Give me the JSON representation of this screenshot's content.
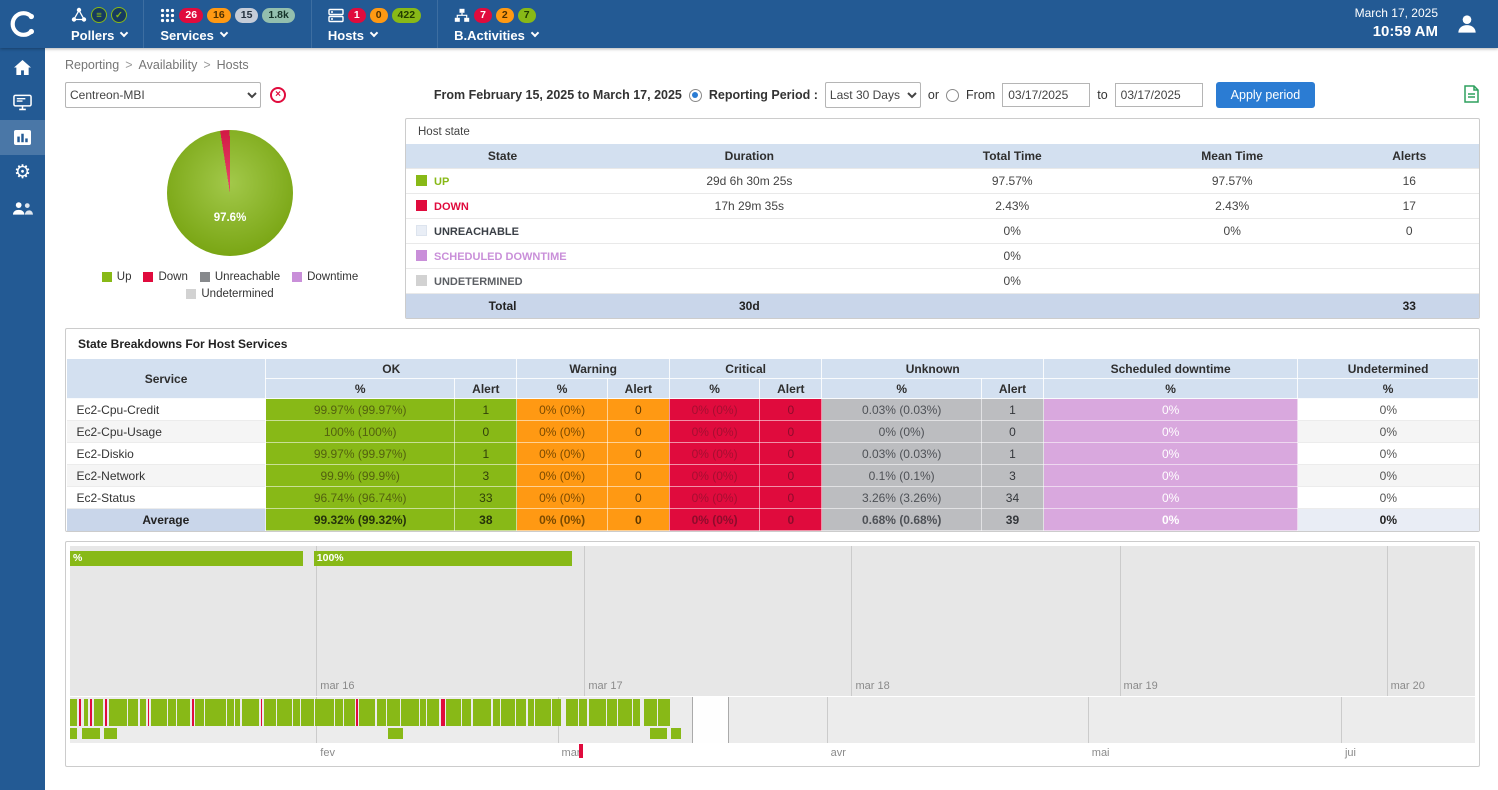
{
  "colors": {
    "header": "#235a94",
    "green": "#88b917",
    "red": "#e00b3d",
    "orange": "#ff9913",
    "purple": "#c98fd9",
    "purplecell": "#d9a8de",
    "gray": "#bcbdc0",
    "lightgray": "#d2d2d2",
    "pale": "#e9eef6",
    "thead": "#d3e0f0",
    "ttotal": "#c9d6ea",
    "blue": "#2b7cd3",
    "chartbg": "#e7e7e7",
    "stripbg": "#ececec",
    "badgegray": "#c5ccd8",
    "badgeteal": "#93bfae"
  },
  "icons": {
    "clear": "×",
    "poller_db": "≡",
    "poller_ok": "✓",
    "gear": "⚙"
  },
  "topbar": {
    "date": "March 17, 2025",
    "time": "10:59 AM",
    "menus": [
      {
        "label": "Pollers",
        "badges": []
      },
      {
        "label": "Services",
        "badges": [
          {
            "v": "26"
          },
          {
            "v": "16"
          },
          {
            "v": "15"
          },
          {
            "v": "1.8k"
          }
        ]
      },
      {
        "label": "Hosts",
        "badges": [
          {
            "v": "1"
          },
          {
            "v": "0"
          },
          {
            "v": "422"
          }
        ]
      },
      {
        "label": "B.Activities",
        "badges": [
          {
            "v": "7"
          },
          {
            "v": "2"
          },
          {
            "v": "7"
          }
        ]
      }
    ]
  },
  "breadcrumb": {
    "items": [
      "Reporting",
      "Availability",
      "Hosts"
    ],
    "sep": ">"
  },
  "filters": {
    "host_group": "Centreon-MBI",
    "period_summary": "From February 15, 2025 to March 17, 2025",
    "reporting_period_label": "Reporting Period :",
    "period_select": "Last 30 Days",
    "or_label": "or",
    "from_label": "From",
    "from_value": "03/17/2025",
    "to_label": "to",
    "to_value": "03/17/2025",
    "apply_label": "Apply period"
  },
  "pie": {
    "value_label": "97.6%",
    "up_pct": 97.6,
    "down_pct": 2.4,
    "legend": [
      "Up",
      "Down",
      "Unreachable",
      "Downtime",
      "Undetermined"
    ]
  },
  "host_state": {
    "title": "Host state",
    "columns": [
      "State",
      "Duration",
      "Total Time",
      "Mean Time",
      "Alerts"
    ],
    "rows": [
      {
        "key": "up",
        "state": "UP",
        "duration": "29d 6h 30m 25s",
        "total": "97.57%",
        "mean": "97.57%",
        "alerts": "16"
      },
      {
        "key": "down",
        "state": "DOWN",
        "duration": "17h 29m 35s",
        "total": "2.43%",
        "mean": "2.43%",
        "alerts": "17"
      },
      {
        "key": "unreachable",
        "state": "UNREACHABLE",
        "duration": "",
        "total": "0%",
        "mean": "0%",
        "alerts": "0"
      },
      {
        "key": "downtime",
        "state": "SCHEDULED DOWNTIME",
        "duration": "",
        "total": "0%",
        "mean": "",
        "alerts": ""
      },
      {
        "key": "undetermined",
        "state": "UNDETERMINED",
        "duration": "",
        "total": "0%",
        "mean": "",
        "alerts": ""
      }
    ],
    "total": {
      "label": "Total",
      "duration": "30d",
      "alerts": "33"
    }
  },
  "breakdown": {
    "title": "State Breakdowns For Host Services",
    "col_service": "Service",
    "col_ok": "OK",
    "col_warning": "Warning",
    "col_critical": "Critical",
    "col_unknown": "Unknown",
    "col_sched": "Scheduled downtime",
    "col_undet": "Undetermined",
    "sub_pct": "%",
    "sub_alert": "Alert",
    "rows": [
      {
        "service": "Ec2-Cpu-Credit",
        "ok_pct": "99.97% (99.97%)",
        "ok_alert": "1",
        "warn_pct": "0% (0%)",
        "warn_alert": "0",
        "crit_pct": "0% (0%)",
        "crit_alert": "0",
        "unk_pct": "0.03% (0.03%)",
        "unk_alert": "1",
        "sched_pct": "0%",
        "undet_pct": "0%"
      },
      {
        "service": "Ec2-Cpu-Usage",
        "ok_pct": "100% (100%)",
        "ok_alert": "0",
        "warn_pct": "0% (0%)",
        "warn_alert": "0",
        "crit_pct": "0% (0%)",
        "crit_alert": "0",
        "unk_pct": "0% (0%)",
        "unk_alert": "0",
        "sched_pct": "0%",
        "undet_pct": "0%"
      },
      {
        "service": "Ec2-Diskio",
        "ok_pct": "99.97% (99.97%)",
        "ok_alert": "1",
        "warn_pct": "0% (0%)",
        "warn_alert": "0",
        "crit_pct": "0% (0%)",
        "crit_alert": "0",
        "unk_pct": "0.03% (0.03%)",
        "unk_alert": "1",
        "sched_pct": "0%",
        "undet_pct": "0%"
      },
      {
        "service": "Ec2-Network",
        "ok_pct": "99.9% (99.9%)",
        "ok_alert": "3",
        "warn_pct": "0% (0%)",
        "warn_alert": "0",
        "crit_pct": "0% (0%)",
        "crit_alert": "0",
        "unk_pct": "0.1% (0.1%)",
        "unk_alert": "3",
        "sched_pct": "0%",
        "undet_pct": "0%"
      },
      {
        "service": "Ec2-Status",
        "ok_pct": "96.74% (96.74%)",
        "ok_alert": "33",
        "warn_pct": "0% (0%)",
        "warn_alert": "0",
        "crit_pct": "0% (0%)",
        "crit_alert": "0",
        "unk_pct": "3.26% (3.26%)",
        "unk_alert": "34",
        "sched_pct": "0%",
        "undet_pct": "0%"
      },
      {
        "service": "Average",
        "ok_pct": "99.32% (99.32%)",
        "ok_alert": "38",
        "warn_pct": "0% (0%)",
        "warn_alert": "0",
        "crit_pct": "0% (0%)",
        "crit_alert": "0",
        "unk_pct": "0.68% (0.68%)",
        "unk_alert": "39",
        "sched_pct": "0%",
        "undet_pct": "0%"
      }
    ]
  },
  "timeline": {
    "upper_bars": [
      {
        "label": "%"
      },
      {
        "label": "100%"
      }
    ],
    "upper_ticks": [
      "mar 16",
      "mar 17",
      "mar 18",
      "mar 19",
      "mar 20"
    ],
    "lower_ticks": [
      "fev",
      "mar",
      "avr",
      "mai",
      "jui"
    ],
    "main_bars": [
      [
        0,
        0.5,
        "g"
      ],
      [
        0.15,
        0.12,
        "r"
      ],
      [
        0.2,
        0.3,
        "g"
      ],
      [
        0.15,
        0.12,
        "r"
      ],
      [
        0.2,
        0.6,
        "g"
      ],
      [
        0.15,
        0.12,
        "r"
      ],
      [
        0.15,
        1.3,
        "g"
      ],
      [
        0.1,
        0.7,
        "g"
      ],
      [
        0.1,
        0.45,
        "g"
      ],
      [
        0.12,
        0.12,
        "r"
      ],
      [
        0.12,
        1.1,
        "g"
      ],
      [
        0.1,
        0.55,
        "g"
      ],
      [
        0.1,
        0.95,
        "g"
      ],
      [
        0.12,
        0.12,
        "r"
      ],
      [
        0.1,
        0.65,
        "g"
      ],
      [
        0.08,
        1.45,
        "g"
      ],
      [
        0.1,
        0.5,
        "g"
      ],
      [
        0.08,
        0.35,
        "g"
      ],
      [
        0.1,
        1.25,
        "g"
      ],
      [
        0.1,
        0.12,
        "r"
      ],
      [
        0.1,
        0.85,
        "g"
      ],
      [
        0.08,
        1.05,
        "g"
      ],
      [
        0.08,
        0.5,
        "g"
      ],
      [
        0.08,
        0.95,
        "g"
      ],
      [
        0.08,
        1.35,
        "g"
      ],
      [
        0.08,
        0.55,
        "g"
      ],
      [
        0.08,
        0.75,
        "g"
      ],
      [
        0.12,
        0.12,
        "r"
      ],
      [
        0.08,
        1.15,
        "g"
      ],
      [
        0.08,
        0.65,
        "g"
      ],
      [
        0.08,
        0.95,
        "g"
      ],
      [
        0.08,
        1.25,
        "g"
      ],
      [
        0.08,
        0.45,
        "g"
      ],
      [
        0.08,
        0.85,
        "g"
      ],
      [
        0.1,
        0.3,
        "r"
      ],
      [
        0.1,
        1.05,
        "g"
      ],
      [
        0.08,
        0.65,
        "g"
      ],
      [
        0.08,
        1.35,
        "g"
      ],
      [
        0.08,
        0.55,
        "g"
      ],
      [
        0.08,
        0.95,
        "g"
      ],
      [
        0.08,
        0.75,
        "g"
      ],
      [
        0.08,
        0.45,
        "g"
      ],
      [
        0.08,
        1.15,
        "g"
      ],
      [
        0.08,
        0.65,
        "g"
      ],
      [
        0.3,
        0.85,
        "g"
      ],
      [
        0.1,
        0.6,
        "g"
      ],
      [
        0.1,
        1.2,
        "g"
      ],
      [
        0.08,
        0.7,
        "g"
      ],
      [
        0.08,
        1.0,
        "g"
      ],
      [
        0.08,
        0.5,
        "g"
      ],
      [
        0.3,
        0.9,
        "g"
      ],
      [
        0.1,
        0.8,
        "g"
      ]
    ],
    "sparse_bars": [
      {
        "l": 0,
        "w": 0.5
      },
      {
        "l": 0.85,
        "w": 1.3
      },
      {
        "l": 2.4,
        "w": 0.95
      },
      {
        "l": 22.6,
        "w": 1.1
      },
      {
        "l": 41.3,
        "w": 1.2
      },
      {
        "l": 42.8,
        "w": 0.7
      }
    ]
  }
}
